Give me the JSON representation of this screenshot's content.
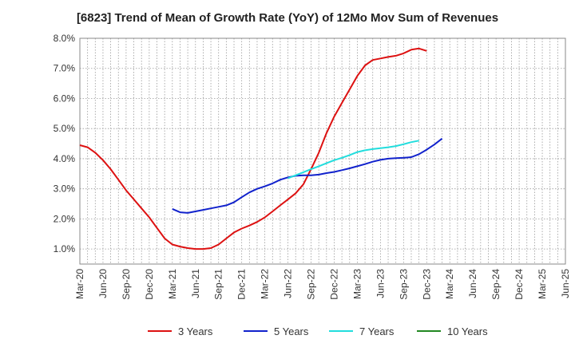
{
  "chart_data": {
    "type": "line",
    "title": "[6823]  Trend of Mean of Growth Rate (YoY) of 12Mo Mov Sum of Revenues",
    "xlabel": "",
    "ylabel": "",
    "ylim": [
      0.5,
      8.0
    ],
    "y_ticks": [
      1.0,
      2.0,
      3.0,
      4.0,
      5.0,
      6.0,
      7.0,
      8.0
    ],
    "y_tick_labels": [
      "1.0%",
      "2.0%",
      "3.0%",
      "4.0%",
      "5.0%",
      "6.0%",
      "7.0%",
      "8.0%"
    ],
    "x_tick_labels": [
      "Mar-20",
      "Jun-20",
      "Sep-20",
      "Dec-20",
      "Mar-21",
      "Jun-21",
      "Sep-21",
      "Dec-21",
      "Mar-22",
      "Jun-22",
      "Sep-22",
      "Dec-22",
      "Mar-23",
      "Jun-23",
      "Sep-23",
      "Dec-23",
      "Mar-24",
      "Jun-24",
      "Sep-24",
      "Dec-24",
      "Mar-25",
      "Jun-25"
    ],
    "legend_position": "bottom",
    "series": [
      {
        "name": "3 Years",
        "color": "#dd1111",
        "start_index": 0,
        "values": [
          4.45,
          4.38,
          4.2,
          3.95,
          3.65,
          3.3,
          2.95,
          2.65,
          2.35,
          2.05,
          1.7,
          1.35,
          1.15,
          1.08,
          1.03,
          1.0,
          1.0,
          1.03,
          1.15,
          1.35,
          1.55,
          1.68,
          1.78,
          1.9,
          2.05,
          2.25,
          2.45,
          2.65,
          2.85,
          3.15,
          3.65,
          4.2,
          4.85,
          5.4,
          5.85,
          6.3,
          6.75,
          7.1,
          7.28,
          7.33,
          7.38,
          7.42,
          7.5,
          7.62,
          7.66,
          7.58
        ]
      },
      {
        "name": "5 Years",
        "color": "#1122cc",
        "start_index": 12,
        "values": [
          2.33,
          2.22,
          2.2,
          2.25,
          2.3,
          2.35,
          2.4,
          2.45,
          2.55,
          2.72,
          2.88,
          3.0,
          3.08,
          3.18,
          3.3,
          3.38,
          3.43,
          3.45,
          3.45,
          3.47,
          3.52,
          3.56,
          3.62,
          3.68,
          3.75,
          3.82,
          3.9,
          3.96,
          4.0,
          4.02,
          4.03,
          4.05,
          4.15,
          4.3,
          4.47,
          4.67
        ]
      },
      {
        "name": "7 Years",
        "color": "#22dddd",
        "start_index": 27,
        "values": [
          3.35,
          3.45,
          3.55,
          3.65,
          3.75,
          3.85,
          3.95,
          4.03,
          4.12,
          4.22,
          4.28,
          4.32,
          4.35,
          4.38,
          4.42,
          4.48,
          4.55,
          4.6
        ]
      },
      {
        "name": "10 Years",
        "color": "#228822",
        "start_index": 0,
        "values": []
      }
    ]
  }
}
